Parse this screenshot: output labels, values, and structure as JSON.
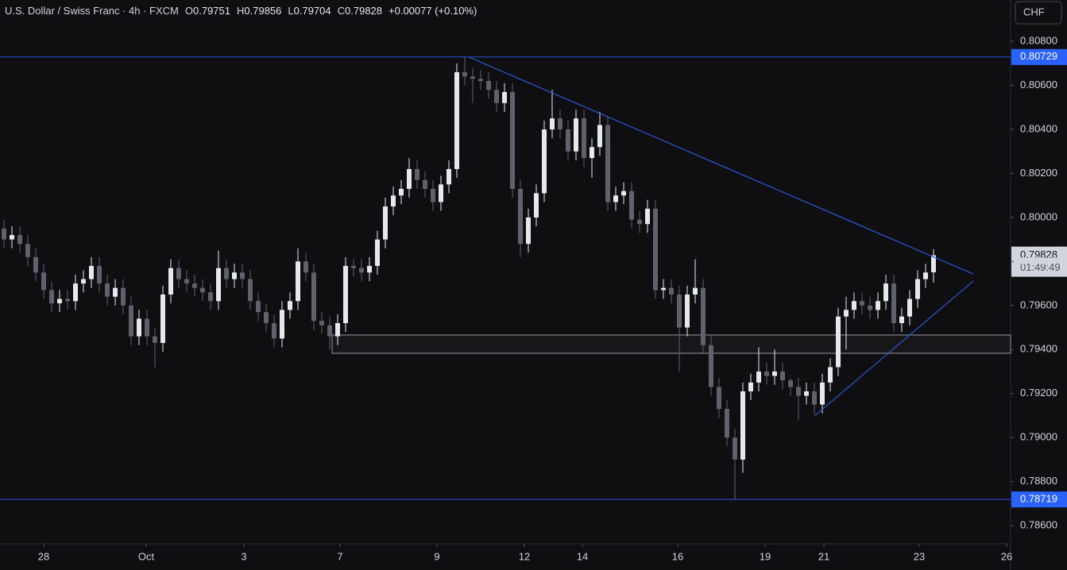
{
  "chart_data": {
    "type": "candlestick",
    "title": "U.S. Dollar / Swiss Franc · 4h · FXCM",
    "ohlc_labels": [
      "O",
      "H",
      "L",
      "C"
    ],
    "change": "+0.00077 (+0.10%)",
    "currency": "CHF",
    "countdown": "01:49:49",
    "up_color": "#e6e8ee",
    "down_color": "#5f626d",
    "line_color": "#2f55d4",
    "open": [
      0.7995,
      0.799,
      0.7992,
      0.7988,
      0.7982,
      0.7975,
      0.7967,
      0.7961,
      0.7963,
      0.7962,
      0.797,
      0.7972,
      0.7978,
      0.797,
      0.7964,
      0.7968,
      0.796,
      0.7946,
      0.7954,
      0.7946,
      0.7943,
      0.7965,
      0.7977,
      0.7972,
      0.797,
      0.7968,
      0.7966,
      0.7962,
      0.7977,
      0.7972,
      0.7975,
      0.7972,
      0.7962,
      0.7957,
      0.7952,
      0.7945,
      0.7958,
      0.7962,
      0.798,
      0.7975,
      0.7953,
      0.7951,
      0.7946,
      0.7952,
      0.7978,
      0.7977,
      0.7975,
      0.7978,
      0.799,
      0.8005,
      0.801,
      0.8013,
      0.8022,
      0.8017,
      0.8013,
      0.8007,
      0.8015,
      0.8022,
      0.8066,
      0.8064,
      0.8063,
      0.8062,
      0.8058,
      0.8052,
      0.8057,
      0.8013,
      0.7988,
      0.8,
      0.8011,
      0.804,
      0.8045,
      0.804,
      0.803,
      0.8045,
      0.8027,
      0.8032,
      0.8042,
      0.8007,
      0.801,
      0.8012,
      0.7999,
      0.7997,
      0.8004,
      0.7967,
      0.7968,
      0.7965,
      0.795,
      0.7965,
      0.7968,
      0.7942,
      0.7923,
      0.7913,
      0.79,
      0.789,
      0.7921,
      0.7925,
      0.793,
      0.7928,
      0.793,
      0.7926,
      0.7923,
      0.7919,
      0.7921,
      0.7915,
      0.7925,
      0.7932,
      0.7955,
      0.7958,
      0.7962,
      0.796,
      0.7958,
      0.7962,
      0.797,
      0.7952,
      0.7955,
      0.7963,
      0.7972,
      0.79751
    ],
    "high": [
      0.7999,
      0.7996,
      0.7996,
      0.7992,
      0.7986,
      0.7979,
      0.7971,
      0.7967,
      0.7967,
      0.7974,
      0.7976,
      0.7982,
      0.7982,
      0.7974,
      0.7972,
      0.7972,
      0.7964,
      0.7958,
      0.7958,
      0.795,
      0.7969,
      0.7981,
      0.7981,
      0.7976,
      0.7974,
      0.7972,
      0.797,
      0.7985,
      0.7981,
      0.7979,
      0.7979,
      0.7976,
      0.7966,
      0.7961,
      0.7956,
      0.7962,
      0.7966,
      0.7986,
      0.7984,
      0.7979,
      0.7957,
      0.7955,
      0.7956,
      0.7982,
      0.7981,
      0.7981,
      0.7982,
      0.7994,
      0.8009,
      0.8014,
      0.8017,
      0.8027,
      0.8026,
      0.8021,
      0.8017,
      0.8019,
      0.8026,
      0.807,
      0.80729,
      0.8068,
      0.8067,
      0.8066,
      0.8062,
      0.8061,
      0.8061,
      0.8017,
      0.8004,
      0.8015,
      0.8044,
      0.8058,
      0.8049,
      0.8044,
      0.8049,
      0.8049,
      0.8036,
      0.8048,
      0.8046,
      0.8014,
      0.8016,
      0.8016,
      0.8003,
      0.8008,
      0.8008,
      0.7972,
      0.7972,
      0.7969,
      0.7969,
      0.7981,
      0.7972,
      0.7946,
      0.7927,
      0.7917,
      0.7904,
      0.7925,
      0.7929,
      0.7941,
      0.7934,
      0.794,
      0.7934,
      0.7927,
      0.7927,
      0.7925,
      0.7925,
      0.7929,
      0.7936,
      0.7959,
      0.7964,
      0.7966,
      0.7966,
      0.7964,
      0.7966,
      0.7974,
      0.7974,
      0.7959,
      0.7967,
      0.7976,
      0.7979,
      0.79856
    ],
    "low": [
      0.7986,
      0.7986,
      0.7984,
      0.7978,
      0.7971,
      0.7963,
      0.7957,
      0.7957,
      0.7958,
      0.7958,
      0.7966,
      0.7968,
      0.7966,
      0.796,
      0.796,
      0.7956,
      0.7942,
      0.7942,
      0.7942,
      0.7932,
      0.7939,
      0.7961,
      0.7968,
      0.7966,
      0.7964,
      0.7962,
      0.7958,
      0.7958,
      0.7968,
      0.7968,
      0.7968,
      0.7958,
      0.7953,
      0.7948,
      0.7941,
      0.7941,
      0.7954,
      0.7958,
      0.7971,
      0.7949,
      0.7947,
      0.794,
      0.7942,
      0.7948,
      0.7973,
      0.7971,
      0.7971,
      0.7974,
      0.7986,
      0.8001,
      0.8006,
      0.8009,
      0.8013,
      0.8009,
      0.8003,
      0.8003,
      0.8011,
      0.8018,
      0.806,
      0.8052,
      0.8058,
      0.8054,
      0.8048,
      0.8048,
      0.8009,
      0.7982,
      0.7984,
      0.7996,
      0.8007,
      0.8036,
      0.8036,
      0.8026,
      0.8026,
      0.8023,
      0.8018,
      0.8028,
      0.8003,
      0.8003,
      0.8006,
      0.7995,
      0.7993,
      0.7993,
      0.7963,
      0.7963,
      0.7961,
      0.793,
      0.7946,
      0.7961,
      0.7938,
      0.7919,
      0.7909,
      0.7896,
      0.78719,
      0.7884,
      0.7917,
      0.7921,
      0.7924,
      0.7924,
      0.7922,
      0.7919,
      0.7908,
      0.7915,
      0.7911,
      0.7911,
      0.7921,
      0.7928,
      0.794,
      0.7954,
      0.7956,
      0.7954,
      0.7954,
      0.7958,
      0.7948,
      0.7948,
      0.7951,
      0.7959,
      0.7968,
      0.79704
    ],
    "close": [
      0.799,
      0.7992,
      0.7988,
      0.7982,
      0.7975,
      0.7967,
      0.7961,
      0.7963,
      0.7962,
      0.797,
      0.7972,
      0.7978,
      0.797,
      0.7964,
      0.7968,
      0.796,
      0.7946,
      0.7954,
      0.7946,
      0.7943,
      0.7965,
      0.7977,
      0.7972,
      0.797,
      0.7968,
      0.7966,
      0.7962,
      0.7977,
      0.7972,
      0.7975,
      0.7972,
      0.7962,
      0.7957,
      0.7952,
      0.7945,
      0.7958,
      0.7962,
      0.798,
      0.7975,
      0.7953,
      0.7951,
      0.7946,
      0.7952,
      0.7978,
      0.7977,
      0.7975,
      0.7978,
      0.799,
      0.8005,
      0.801,
      0.8013,
      0.8022,
      0.8017,
      0.8013,
      0.8007,
      0.8015,
      0.8022,
      0.8066,
      0.8064,
      0.8063,
      0.8062,
      0.8058,
      0.8052,
      0.8057,
      0.8013,
      0.7988,
      0.8,
      0.8011,
      0.804,
      0.8045,
      0.804,
      0.803,
      0.8045,
      0.8027,
      0.8032,
      0.8042,
      0.8007,
      0.801,
      0.8012,
      0.7999,
      0.7997,
      0.8004,
      0.7967,
      0.7968,
      0.7965,
      0.795,
      0.7965,
      0.7968,
      0.7942,
      0.7923,
      0.7913,
      0.79,
      0.789,
      0.7921,
      0.7925,
      0.793,
      0.7928,
      0.793,
      0.7926,
      0.7923,
      0.7919,
      0.7921,
      0.7915,
      0.7925,
      0.7932,
      0.7955,
      0.7958,
      0.7962,
      0.796,
      0.7958,
      0.7962,
      0.797,
      0.7952,
      0.7955,
      0.7963,
      0.7972,
      0.7975,
      0.79828
    ],
    "xlim": [
      -0.5,
      126.7
    ],
    "ylim": [
      0.78521,
      0.80988
    ],
    "xticks": [
      {
        "value": 5,
        "label": "28"
      },
      {
        "value": 17.9,
        "label": "Oct"
      },
      {
        "value": 30.2,
        "label": "3"
      },
      {
        "value": 42.3,
        "label": "7"
      },
      {
        "value": 54.5,
        "label": "9"
      },
      {
        "value": 65.5,
        "label": "12"
      },
      {
        "value": 72.8,
        "label": "14"
      },
      {
        "value": 84.8,
        "label": "16"
      },
      {
        "value": 95.8,
        "label": "19"
      },
      {
        "value": 103.2,
        "label": "21"
      },
      {
        "value": 115.2,
        "label": "23"
      },
      {
        "value": 126.2,
        "label": "26"
      }
    ],
    "yticks": [
      {
        "value": 0.808,
        "label": "0.80800"
      },
      {
        "value": 0.806,
        "label": "0.80600"
      },
      {
        "value": 0.804,
        "label": "0.80400"
      },
      {
        "value": 0.802,
        "label": "0.80200"
      },
      {
        "value": 0.8,
        "label": "0.80000"
      },
      {
        "value": 0.798,
        "label": "0.79800"
      },
      {
        "value": 0.796,
        "label": "0.79600"
      },
      {
        "value": 0.794,
        "label": "0.79400"
      },
      {
        "value": 0.792,
        "label": "0.79200"
      },
      {
        "value": 0.79,
        "label": "0.79000"
      },
      {
        "value": 0.788,
        "label": "0.78800"
      },
      {
        "value": 0.786,
        "label": "0.78600"
      }
    ],
    "hlines": [
      0.80729,
      0.78719
    ],
    "trendlines": [
      {
        "x": [
          58.5,
          122
        ],
        "y": [
          0.80729,
          0.79743
        ]
      },
      {
        "x": [
          102,
          122
        ],
        "y": [
          0.79098,
          0.79711
        ]
      }
    ],
    "zone": {
      "x": [
        41.3,
        126.7
      ],
      "y": [
        0.79383,
        0.79466
      ]
    }
  }
}
